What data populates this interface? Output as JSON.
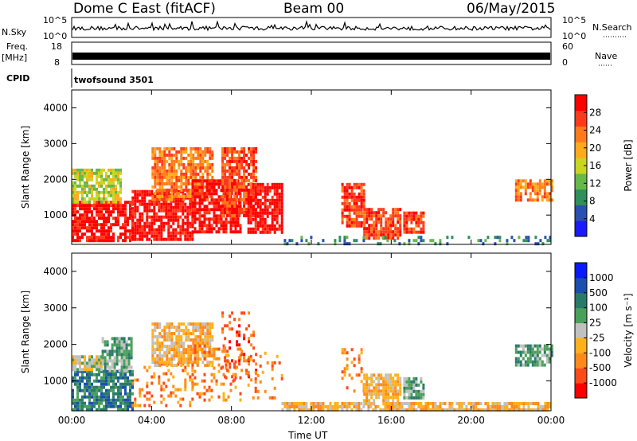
{
  "header": {
    "station": "Dome C East (fitACF)",
    "beam": "Beam 00",
    "date": "06/May/2015"
  },
  "strip": {
    "nsky_label": "N.Sky",
    "nsky_top": "10^5",
    "nsky_bottom": "10^0",
    "nsearch_label": "N.Search",
    "nsearch_top": "10^5",
    "nsearch_bottom": "10^0",
    "freq_label": "Freq.",
    "freq_unit": "[MHz]",
    "freq_top": "18",
    "freq_bottom": "8",
    "nave_label": "Nave",
    "nave_top": "60",
    "nave_bottom": "0",
    "cpid_label": "CPID",
    "cpid_text": "twofsound 3501"
  },
  "colors": {
    "power": [
      "#1a1aff",
      "#2a4fb3",
      "#2e8f5c",
      "#66b84a",
      "#c8d61e",
      "#ffaa1a",
      "#ff7a1a",
      "#ff3a1a",
      "#ff0000"
    ],
    "velocity": [
      "#ff0000",
      "#ff4a1a",
      "#ff8a1a",
      "#ffb01a",
      "#c0c0c0",
      "#4aa05a",
      "#2a7a6a",
      "#1a4fb0",
      "#0a1aff"
    ]
  },
  "chart_data": [
    {
      "type": "heatmap",
      "name": "Power",
      "xlabel": "",
      "ylabel": "Slant Range [km]",
      "x_ticks": [
        "00:00",
        "04:00",
        "08:00",
        "12:00",
        "16:00",
        "20:00",
        "00:00"
      ],
      "x_tick_hours": [
        0,
        4,
        8,
        12,
        16,
        20,
        24
      ],
      "xlim": [
        0,
        24
      ],
      "y_ticks": [
        1000,
        2000,
        3000,
        4000
      ],
      "ylim": [
        180,
        4500
      ],
      "colorbar": {
        "label": "Power [dB]",
        "ticks": [
          "4",
          "8",
          "12",
          "16",
          "20",
          "24",
          "28"
        ],
        "range": [
          0,
          32
        ]
      },
      "echo_regions": [
        {
          "t0": 0.0,
          "t1": 3.0,
          "r0": 250,
          "r1": 1400,
          "level": 8
        },
        {
          "t0": 0.0,
          "t1": 2.5,
          "r0": 1400,
          "r1": 2300,
          "level": 4
        },
        {
          "t0": 3.0,
          "t1": 6.0,
          "r0": 300,
          "r1": 1700,
          "level": 8
        },
        {
          "t0": 4.0,
          "t1": 7.0,
          "r0": 1400,
          "r1": 2900,
          "level": 6
        },
        {
          "t0": 6.0,
          "t1": 8.5,
          "r0": 500,
          "r1": 2000,
          "level": 8
        },
        {
          "t0": 7.5,
          "t1": 9.2,
          "r0": 1000,
          "r1": 2900,
          "level": 7
        },
        {
          "t0": 8.8,
          "t1": 10.5,
          "r0": 500,
          "r1": 1900,
          "level": 8
        },
        {
          "t0": 13.5,
          "t1": 14.6,
          "r0": 700,
          "r1": 1900,
          "level": 7
        },
        {
          "t0": 14.6,
          "t1": 16.5,
          "r0": 350,
          "r1": 1200,
          "level": 7
        },
        {
          "t0": 16.6,
          "t1": 17.6,
          "r0": 500,
          "r1": 1100,
          "level": 7
        },
        {
          "t0": 22.2,
          "t1": 24.0,
          "r0": 1400,
          "r1": 2000,
          "level": 6
        },
        {
          "t0": 10.5,
          "t1": 24.0,
          "r0": 200,
          "r1": 420,
          "level": 2
        }
      ]
    },
    {
      "type": "heatmap",
      "name": "Velocity",
      "xlabel": "Time UT",
      "ylabel": "Slant Range [km]",
      "x_ticks": [
        "00:00",
        "04:00",
        "08:00",
        "12:00",
        "16:00",
        "20:00",
        "00:00"
      ],
      "x_tick_hours": [
        0,
        4,
        8,
        12,
        16,
        20,
        24
      ],
      "xlim": [
        0,
        24
      ],
      "y_ticks": [
        1000,
        2000,
        3000,
        4000
      ],
      "ylim": [
        180,
        4500
      ],
      "colorbar": {
        "label": "Velocity [m s⁻¹]",
        "ticks": [
          "-1000",
          "-500",
          "-100",
          "-25",
          "25",
          "100",
          "500",
          "1000"
        ],
        "range": [
          -1000,
          1000
        ]
      },
      "echo_regions": [
        {
          "t0": 0.0,
          "t1": 3.0,
          "r0": 250,
          "r1": 1300,
          "level": 6
        },
        {
          "t0": 0.0,
          "t1": 1.5,
          "r0": 1300,
          "r1": 1700,
          "level": 4
        },
        {
          "t0": 1.5,
          "t1": 3.0,
          "r0": 1300,
          "r1": 2200,
          "level": 5
        },
        {
          "t0": 3.0,
          "t1": 6.0,
          "r0": 300,
          "r1": 1500,
          "level": 2
        },
        {
          "t0": 4.0,
          "t1": 7.0,
          "r0": 1400,
          "r1": 2600,
          "level": 3
        },
        {
          "t0": 6.0,
          "t1": 8.5,
          "r0": 500,
          "r1": 2000,
          "level": 2
        },
        {
          "t0": 7.5,
          "t1": 9.2,
          "r0": 1000,
          "r1": 2900,
          "level": 1
        },
        {
          "t0": 8.8,
          "t1": 10.5,
          "r0": 500,
          "r1": 1800,
          "level": 2
        },
        {
          "t0": 13.5,
          "t1": 14.6,
          "r0": 700,
          "r1": 1900,
          "level": 2
        },
        {
          "t0": 14.6,
          "t1": 16.5,
          "r0": 350,
          "r1": 1200,
          "level": 3
        },
        {
          "t0": 16.6,
          "t1": 17.6,
          "r0": 500,
          "r1": 1100,
          "level": 5
        },
        {
          "t0": 22.2,
          "t1": 24.0,
          "r0": 1400,
          "r1": 2000,
          "level": 5
        },
        {
          "t0": 10.5,
          "t1": 24.0,
          "r0": 200,
          "r1": 420,
          "level": 3
        }
      ]
    }
  ]
}
